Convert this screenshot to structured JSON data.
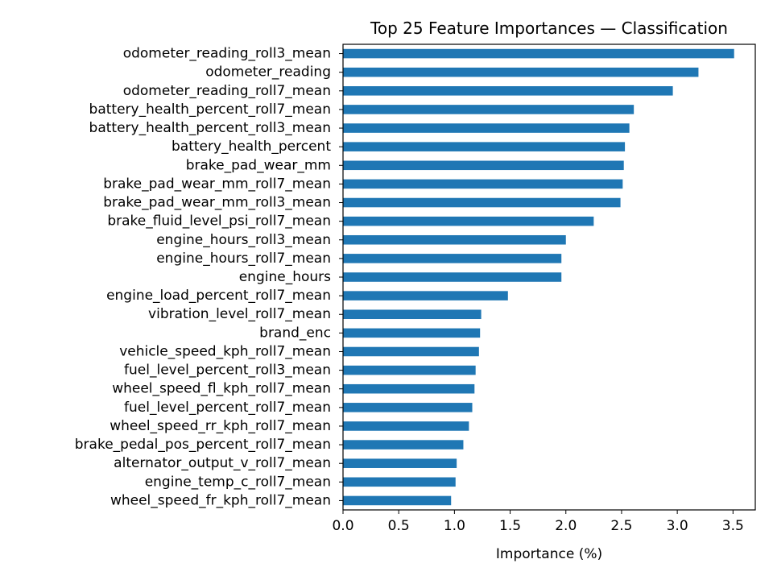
{
  "chart_data": {
    "type": "bar",
    "orientation": "horizontal",
    "title": "Top 25 Feature Importances — Classification",
    "xlabel": "Importance (%)",
    "ylabel": "",
    "xlim": [
      0,
      3.7
    ],
    "xticks": [
      0.0,
      0.5,
      1.0,
      1.5,
      2.0,
      2.5,
      3.0,
      3.5
    ],
    "xtick_labels": [
      "0.0",
      "0.5",
      "1.0",
      "1.5",
      "2.0",
      "2.5",
      "3.0",
      "3.5"
    ],
    "grid": false,
    "bar_color": "#1f77b4",
    "categories": [
      "odometer_reading_roll3_mean",
      "odometer_reading",
      "odometer_reading_roll7_mean",
      "battery_health_percent_roll7_mean",
      "battery_health_percent_roll3_mean",
      "battery_health_percent",
      "brake_pad_wear_mm",
      "brake_pad_wear_mm_roll7_mean",
      "brake_pad_wear_mm_roll3_mean",
      "brake_fluid_level_psi_roll7_mean",
      "engine_hours_roll3_mean",
      "engine_hours_roll7_mean",
      "engine_hours",
      "engine_load_percent_roll7_mean",
      "vibration_level_roll7_mean",
      "brand_enc",
      "vehicle_speed_kph_roll7_mean",
      "fuel_level_percent_roll3_mean",
      "wheel_speed_fl_kph_roll7_mean",
      "fuel_level_percent_roll7_mean",
      "wheel_speed_rr_kph_roll7_mean",
      "brake_pedal_pos_percent_roll7_mean",
      "alternator_output_v_roll7_mean",
      "engine_temp_c_roll7_mean",
      "wheel_speed_fr_kph_roll7_mean"
    ],
    "values": [
      3.51,
      3.19,
      2.96,
      2.61,
      2.57,
      2.53,
      2.52,
      2.51,
      2.49,
      2.25,
      2.0,
      1.96,
      1.96,
      1.48,
      1.24,
      1.23,
      1.22,
      1.19,
      1.18,
      1.16,
      1.13,
      1.08,
      1.02,
      1.01,
      0.97
    ]
  }
}
